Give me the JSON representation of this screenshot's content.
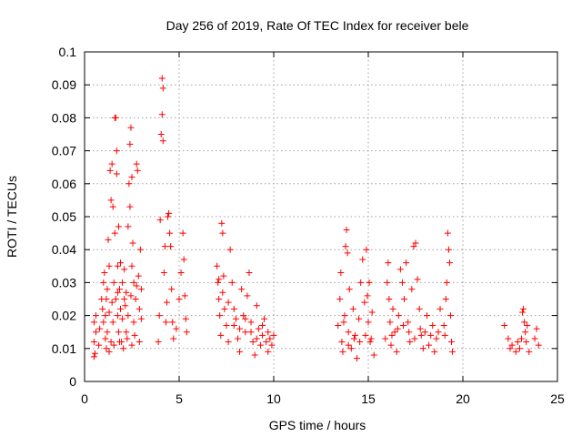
{
  "chart_data": {
    "type": "scatter",
    "title": "Day 256 of 2019, Rate Of TEC Index for receiver bele",
    "xlabel": "GPS time / hours",
    "ylabel": "ROTI / TECUs",
    "xlim": [
      0,
      25
    ],
    "ylim": [
      0,
      0.1
    ],
    "x_ticks": [
      0,
      5,
      10,
      15,
      20,
      25
    ],
    "x_tick_labels": [
      "0",
      "5",
      "10",
      "15",
      "20",
      "25"
    ],
    "y_ticks": [
      0,
      0.01,
      0.02,
      0.03,
      0.04,
      0.05,
      0.06,
      0.07,
      0.08,
      0.09,
      0.1
    ],
    "y_tick_labels": [
      "0",
      "0.01",
      "0.02",
      "0.03",
      "0.04",
      "0.05",
      "0.06",
      "0.07",
      "0.08",
      "0.09",
      "0.1"
    ],
    "grid": true,
    "marker": "plus",
    "color": "#ff0000",
    "series": [
      {
        "values": [
          [
            0.5,
            0.0075
          ],
          [
            0.5,
            0.012
          ],
          [
            0.5,
            0.018
          ],
          [
            0.55,
            0.0085
          ],
          [
            0.6,
            0.015
          ],
          [
            0.6,
            0.02
          ],
          [
            0.75,
            0.011
          ],
          [
            0.8,
            0.016
          ],
          [
            0.9,
            0.025
          ],
          [
            0.95,
            0.022
          ],
          [
            1.0,
            0.018
          ],
          [
            1.0,
            0.03
          ],
          [
            1.05,
            0.033
          ],
          [
            1.1,
            0.013
          ],
          [
            1.1,
            0.02
          ],
          [
            1.15,
            0.025
          ],
          [
            1.2,
            0.028
          ],
          [
            1.2,
            0.015
          ],
          [
            1.25,
            0.043
          ],
          [
            1.3,
            0.021
          ],
          [
            1.3,
            0.035
          ],
          [
            1.35,
            0.064
          ],
          [
            1.4,
            0.012
          ],
          [
            1.4,
            0.055
          ],
          [
            1.45,
            0.066
          ],
          [
            1.5,
            0.053
          ],
          [
            1.5,
            0.018
          ],
          [
            1.55,
            0.03
          ],
          [
            1.6,
            0.045
          ],
          [
            1.6,
            0.08
          ],
          [
            1.65,
            0.08
          ],
          [
            1.65,
            0.025
          ],
          [
            1.7,
            0.07
          ],
          [
            1.7,
            0.063
          ],
          [
            1.75,
            0.035
          ],
          [
            1.75,
            0.02
          ],
          [
            1.8,
            0.047
          ],
          [
            1.8,
            0.015
          ],
          [
            1.85,
            0.028
          ],
          [
            1.9,
            0.022
          ],
          [
            1.9,
            0.036
          ],
          [
            1.95,
            0.012
          ],
          [
            2.0,
            0.03
          ],
          [
            2.0,
            0.019
          ],
          [
            2.1,
            0.025
          ],
          [
            2.1,
            0.034
          ],
          [
            2.2,
            0.015
          ],
          [
            2.2,
            0.027
          ],
          [
            2.3,
            0.047
          ],
          [
            2.3,
            0.02
          ],
          [
            2.35,
            0.06
          ],
          [
            2.4,
            0.053
          ],
          [
            2.4,
            0.072
          ],
          [
            2.45,
            0.077
          ],
          [
            2.5,
            0.035
          ],
          [
            2.5,
            0.062
          ],
          [
            2.55,
            0.042
          ],
          [
            2.6,
            0.03
          ],
          [
            2.6,
            0.018
          ],
          [
            2.7,
            0.025
          ],
          [
            2.75,
            0.066
          ],
          [
            2.8,
            0.064
          ],
          [
            2.85,
            0.032
          ],
          [
            2.9,
            0.022
          ],
          [
            2.95,
            0.04
          ],
          [
            3.0,
            0.019
          ],
          [
            3.0,
            0.028
          ],
          [
            1.15,
            0.01
          ],
          [
            1.3,
            0.009
          ],
          [
            1.55,
            0.011
          ],
          [
            1.85,
            0.012
          ],
          [
            2.05,
            0.01
          ],
          [
            2.25,
            0.013
          ],
          [
            2.5,
            0.011
          ],
          [
            2.65,
            0.014
          ],
          [
            2.9,
            0.012
          ],
          [
            1.45,
            0.024
          ],
          [
            1.75,
            0.027
          ],
          [
            2.15,
            0.023
          ],
          [
            2.45,
            0.026
          ],
          [
            2.75,
            0.029
          ],
          [
            3.9,
            0.012
          ],
          [
            3.95,
            0.02
          ],
          [
            4.0,
            0.049
          ],
          [
            4.05,
            0.075
          ],
          [
            4.1,
            0.092
          ],
          [
            4.1,
            0.081
          ],
          [
            4.15,
            0.089
          ],
          [
            4.15,
            0.073
          ],
          [
            4.2,
            0.033
          ],
          [
            4.25,
            0.041
          ],
          [
            4.3,
            0.018
          ],
          [
            4.35,
            0.024
          ],
          [
            4.4,
            0.05
          ],
          [
            4.45,
            0.051
          ],
          [
            4.5,
            0.045
          ],
          [
            4.55,
            0.041
          ],
          [
            4.6,
            0.028
          ],
          [
            4.65,
            0.018
          ],
          [
            4.7,
            0.013
          ],
          [
            4.85,
            0.016
          ],
          [
            5.0,
            0.025
          ],
          [
            5.1,
            0.033
          ],
          [
            5.2,
            0.045
          ],
          [
            5.25,
            0.037
          ],
          [
            5.3,
            0.026
          ],
          [
            5.35,
            0.019
          ],
          [
            5.4,
            0.015
          ],
          [
            7.0,
            0.035
          ],
          [
            7.05,
            0.03
          ],
          [
            7.1,
            0.025
          ],
          [
            7.15,
            0.02
          ],
          [
            7.2,
            0.014
          ],
          [
            7.25,
            0.048
          ],
          [
            7.3,
            0.045
          ],
          [
            7.35,
            0.032
          ],
          [
            7.4,
            0.022
          ],
          [
            7.5,
            0.017
          ],
          [
            7.6,
            0.012
          ],
          [
            7.7,
            0.04
          ],
          [
            7.8,
            0.03
          ],
          [
            7.9,
            0.022
          ],
          [
            8.0,
            0.019
          ],
          [
            8.1,
            0.013
          ],
          [
            8.2,
            0.009
          ],
          [
            8.3,
            0.028
          ],
          [
            8.4,
            0.02
          ],
          [
            8.5,
            0.015
          ],
          [
            8.6,
            0.026
          ],
          [
            8.7,
            0.033
          ],
          [
            8.8,
            0.018
          ],
          [
            8.9,
            0.012
          ],
          [
            9.0,
            0.008
          ],
          [
            9.1,
            0.023
          ],
          [
            9.2,
            0.016
          ],
          [
            9.3,
            0.011
          ],
          [
            9.4,
            0.014
          ],
          [
            9.5,
            0.019
          ],
          [
            9.6,
            0.012
          ],
          [
            9.7,
            0.009
          ],
          [
            9.8,
            0.013
          ],
          [
            9.9,
            0.011
          ],
          [
            10.0,
            0.014
          ],
          [
            7.1,
            0.031
          ],
          [
            7.3,
            0.027
          ],
          [
            7.6,
            0.024
          ],
          [
            7.9,
            0.017
          ],
          [
            8.2,
            0.016
          ],
          [
            8.5,
            0.019
          ],
          [
            8.8,
            0.015
          ],
          [
            9.1,
            0.013
          ],
          [
            9.4,
            0.017
          ],
          [
            9.7,
            0.015
          ],
          [
            13.4,
            0.017
          ],
          [
            13.5,
            0.025
          ],
          [
            13.55,
            0.033
          ],
          [
            13.6,
            0.012
          ],
          [
            13.7,
            0.018
          ],
          [
            13.75,
            0.02
          ],
          [
            13.8,
            0.041
          ],
          [
            13.85,
            0.046
          ],
          [
            13.9,
            0.039
          ],
          [
            13.95,
            0.015
          ],
          [
            14.0,
            0.028
          ],
          [
            14.1,
            0.01
          ],
          [
            14.2,
            0.022
          ],
          [
            14.3,
            0.014
          ],
          [
            14.4,
            0.007
          ],
          [
            14.5,
            0.019
          ],
          [
            14.6,
            0.03
          ],
          [
            14.7,
            0.037
          ],
          [
            14.8,
            0.024
          ],
          [
            14.9,
            0.04
          ],
          [
            14.95,
            0.026
          ],
          [
            15.0,
            0.018
          ],
          [
            15.05,
            0.03
          ],
          [
            15.1,
            0.012
          ],
          [
            15.2,
            0.021
          ],
          [
            15.3,
            0.008
          ],
          [
            13.65,
            0.009
          ],
          [
            13.95,
            0.011
          ],
          [
            14.25,
            0.013
          ],
          [
            14.55,
            0.012
          ],
          [
            14.85,
            0.014
          ],
          [
            15.15,
            0.013
          ],
          [
            15.9,
            0.013
          ],
          [
            16.0,
            0.03
          ],
          [
            16.05,
            0.036
          ],
          [
            16.1,
            0.025
          ],
          [
            16.15,
            0.018
          ],
          [
            16.2,
            0.011
          ],
          [
            16.3,
            0.022
          ],
          [
            16.4,
            0.015
          ],
          [
            16.5,
            0.009
          ],
          [
            16.6,
            0.02
          ],
          [
            16.7,
            0.034
          ],
          [
            16.8,
            0.03
          ],
          [
            16.9,
            0.025
          ],
          [
            17.0,
            0.036
          ],
          [
            17.1,
            0.018
          ],
          [
            17.2,
            0.012
          ],
          [
            17.3,
            0.028
          ],
          [
            17.4,
            0.041
          ],
          [
            17.5,
            0.042
          ],
          [
            17.6,
            0.031
          ],
          [
            17.7,
            0.022
          ],
          [
            17.8,
            0.014
          ],
          [
            17.9,
            0.01
          ],
          [
            18.0,
            0.015
          ],
          [
            18.1,
            0.02
          ],
          [
            18.2,
            0.011
          ],
          [
            18.4,
            0.017
          ],
          [
            18.5,
            0.009
          ],
          [
            18.6,
            0.013
          ],
          [
            18.8,
            0.022
          ],
          [
            19.0,
            0.017
          ],
          [
            19.1,
            0.025
          ],
          [
            19.15,
            0.03
          ],
          [
            19.2,
            0.045
          ],
          [
            19.25,
            0.04
          ],
          [
            19.3,
            0.036
          ],
          [
            19.35,
            0.02
          ],
          [
            19.4,
            0.012
          ],
          [
            19.45,
            0.009
          ],
          [
            16.25,
            0.014
          ],
          [
            16.55,
            0.016
          ],
          [
            16.85,
            0.017
          ],
          [
            17.15,
            0.015
          ],
          [
            17.45,
            0.013
          ],
          [
            17.75,
            0.016
          ],
          [
            18.3,
            0.014
          ],
          [
            18.7,
            0.015
          ],
          [
            19.05,
            0.014
          ],
          [
            22.2,
            0.017
          ],
          [
            22.4,
            0.013
          ],
          [
            22.5,
            0.01
          ],
          [
            22.6,
            0.011
          ],
          [
            22.8,
            0.009
          ],
          [
            22.9,
            0.012
          ],
          [
            23.0,
            0.01
          ],
          [
            23.1,
            0.013
          ],
          [
            23.15,
            0.021
          ],
          [
            23.2,
            0.022
          ],
          [
            23.25,
            0.018
          ],
          [
            23.3,
            0.015
          ],
          [
            23.35,
            0.012
          ],
          [
            23.4,
            0.017
          ],
          [
            23.5,
            0.009
          ],
          [
            23.8,
            0.013
          ],
          [
            23.9,
            0.016
          ],
          [
            24.0,
            0.011
          ]
        ]
      }
    ]
  }
}
